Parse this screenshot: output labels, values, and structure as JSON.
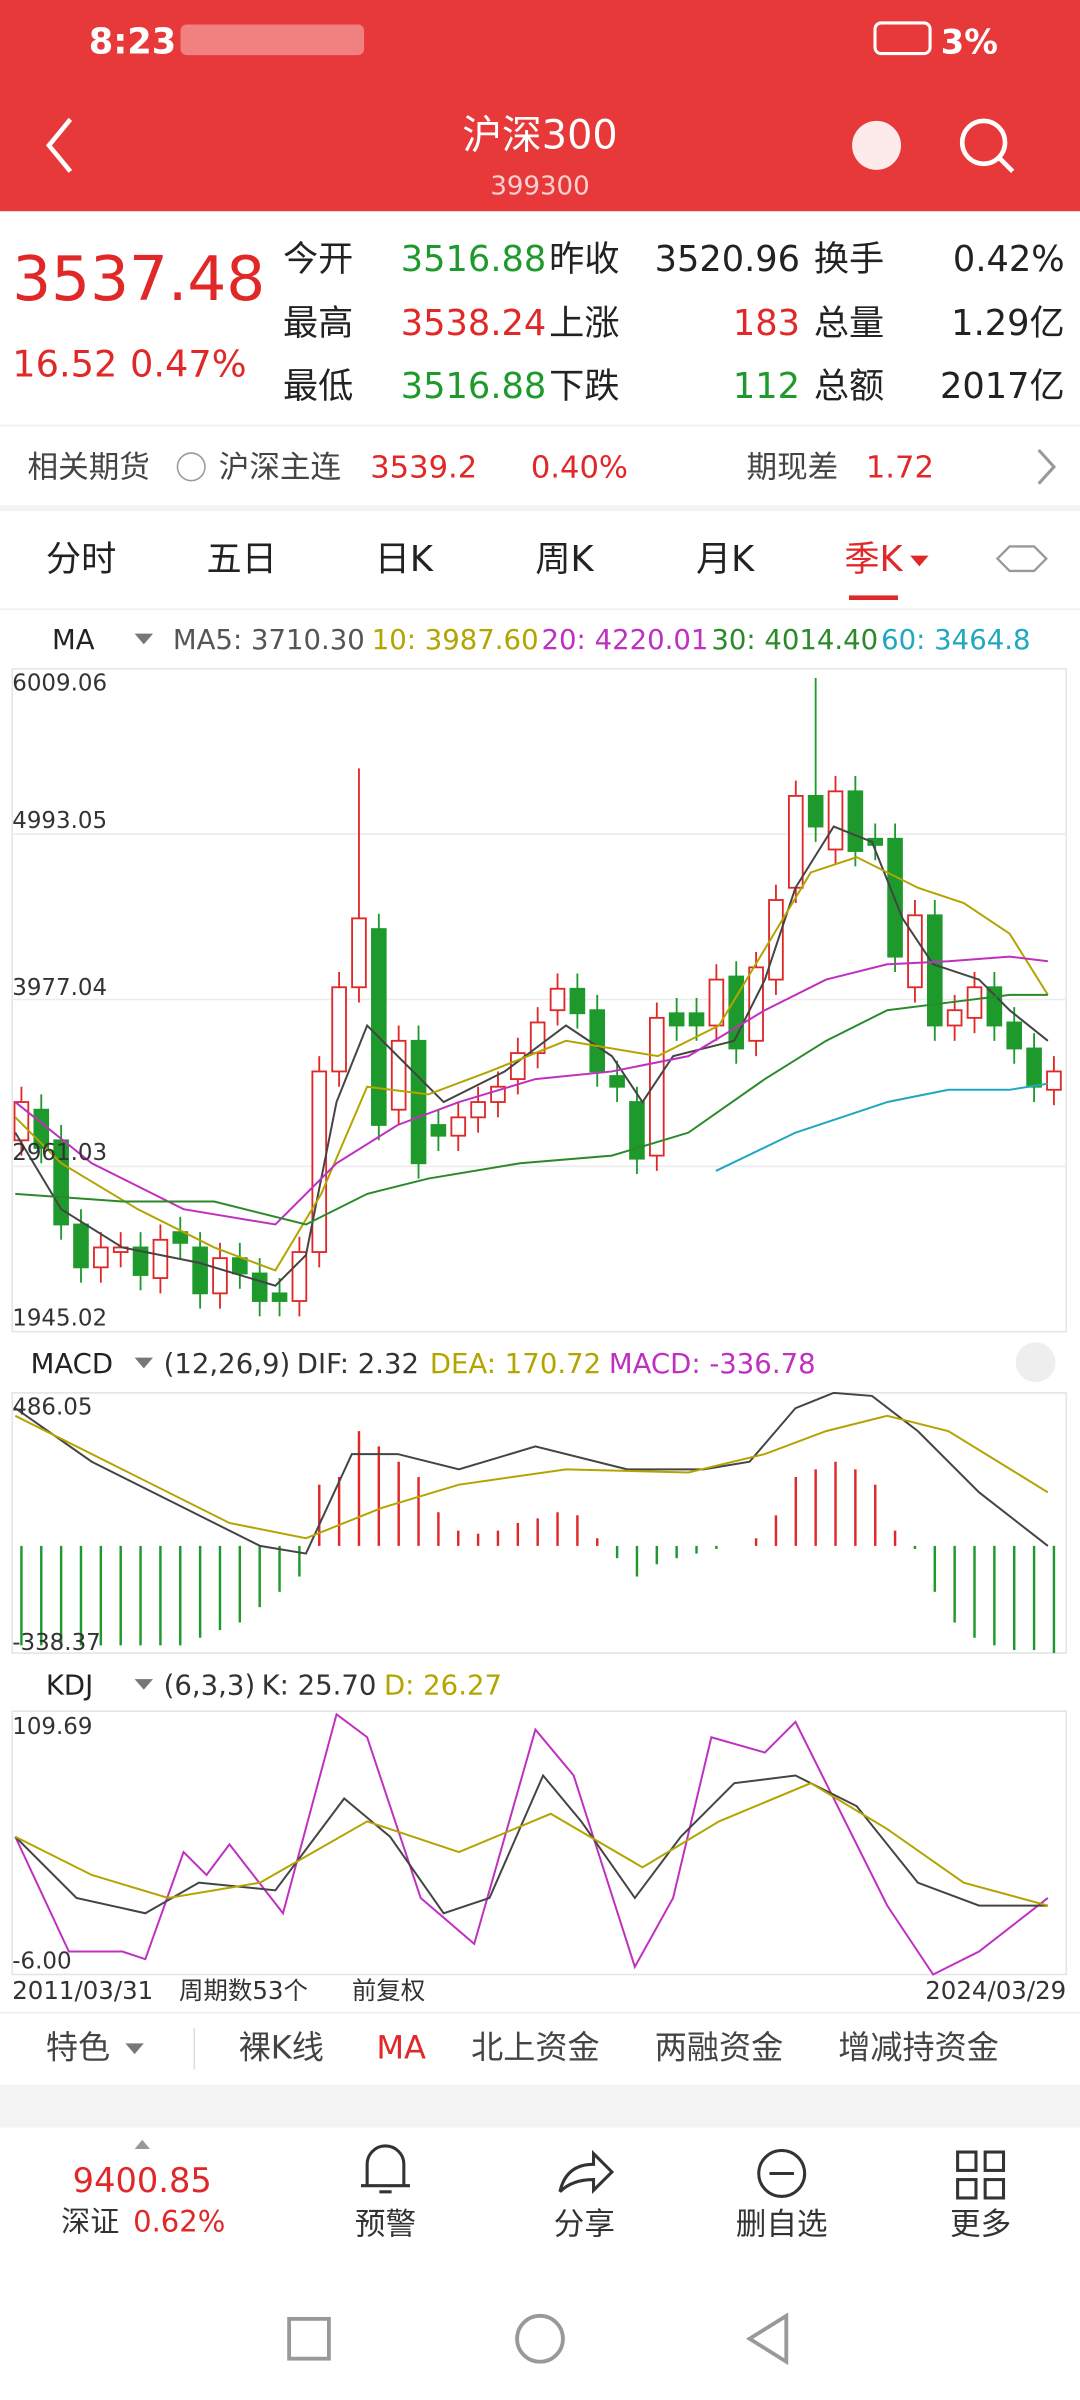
{
  "status": {
    "time": "8:23",
    "battery": "3%"
  },
  "header": {
    "title": "沪深300",
    "code": "399300"
  },
  "quote": {
    "price": "3537.48",
    "change": "16.52",
    "percent": "0.47%",
    "fields": [
      {
        "label": "今开",
        "value": "3516.88"
      },
      {
        "label": "昨收",
        "value": "3520.96"
      },
      {
        "label": "换手",
        "value": "0.42%"
      },
      {
        "label": "最高",
        "value": "3538.24"
      },
      {
        "label": "上涨",
        "value": "183"
      },
      {
        "label": "总量",
        "value": "1.29亿"
      },
      {
        "label": "最低",
        "value": "3516.88"
      },
      {
        "label": "下跌",
        "value": "112"
      },
      {
        "label": "总额",
        "value": "2017亿"
      }
    ]
  },
  "futures": {
    "label": "相关期货",
    "name": "沪深主连",
    "price": "3539.2",
    "percent": "0.40%",
    "basis_label": "期现差",
    "basis": "1.72"
  },
  "tabs": [
    "分时",
    "五日",
    "日K",
    "周K",
    "月K",
    "季K"
  ],
  "ma": {
    "label": "MA",
    "items": [
      "MA5: 3710.30",
      "10: 3987.60",
      "20: 4220.01",
      "30: 4014.40",
      "60: 3464.8"
    ]
  },
  "price_axis": [
    "6009.06",
    "4993.05",
    "3977.04",
    "2961.03",
    "1945.02"
  ],
  "macd": {
    "label": "MACD",
    "params": "(12,26,9)",
    "dif": "DIF: 2.32",
    "dea": "DEA: 170.72",
    "macd": "MACD: -336.78",
    "axis": [
      "486.05",
      "-338.37"
    ]
  },
  "kdj": {
    "label": "KDJ",
    "params": "(6,3,3)",
    "k": "K: 25.70",
    "d": "D: 26.27",
    "axis": [
      "109.69",
      "-6.00"
    ]
  },
  "range": {
    "start": "2011/03/31",
    "count": "周期数53个",
    "adjust": "前复权",
    "end": "2024/03/29"
  },
  "indicator_tabs": [
    "特色",
    "裸K线",
    "MA",
    "北上资金",
    "两融资金",
    "增减持资金"
  ],
  "bottom": {
    "index_value": "9400.85",
    "index_name": "深证",
    "index_percent": "0.62%",
    "actions": [
      "预警",
      "分享",
      "删自选",
      "更多"
    ]
  }
}
